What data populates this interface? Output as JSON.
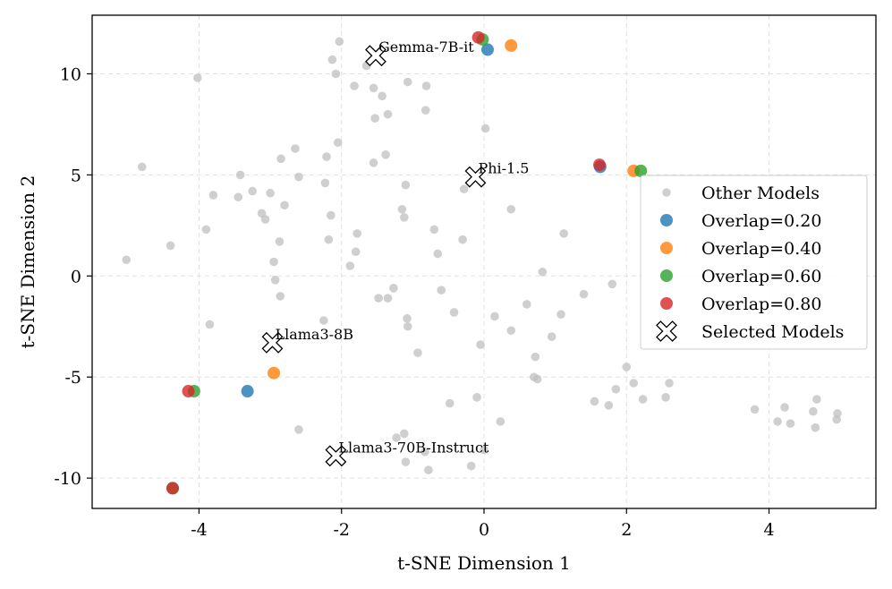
{
  "chart_data": {
    "type": "scatter",
    "xlabel": "t-SNE Dimension 1",
    "ylabel": "t-SNE Dimension 2",
    "xlim": [
      -5.5,
      5.5
    ],
    "ylim": [
      -11.5,
      12.9
    ],
    "xticks": [
      -4,
      -2,
      0,
      2,
      4
    ],
    "yticks": [
      -10,
      -5,
      0,
      5,
      10
    ],
    "xtick_labels": [
      "-4",
      "-2",
      "0",
      "2",
      "4"
    ],
    "ytick_labels": [
      "-10",
      "-5",
      "0",
      "5",
      "10"
    ],
    "grid": true,
    "legend_position": "center-right",
    "series": [
      {
        "name": "Other Models",
        "color": "#bfbfbf",
        "marker": "small-circle",
        "points": [
          [
            -5.02,
            0.8
          ],
          [
            -4.8,
            5.4
          ],
          [
            -4.4,
            1.5
          ],
          [
            -4.02,
            9.8
          ],
          [
            -3.9,
            2.3
          ],
          [
            -3.85,
            -2.4
          ],
          [
            -3.8,
            4.0
          ],
          [
            -3.45,
            3.9
          ],
          [
            -3.42,
            5.0
          ],
          [
            -3.25,
            4.2
          ],
          [
            -3.12,
            3.1
          ],
          [
            -3.07,
            2.8
          ],
          [
            -3.0,
            4.1
          ],
          [
            -2.95,
            0.7
          ],
          [
            -2.93,
            -0.2
          ],
          [
            -2.87,
            1.7
          ],
          [
            -2.86,
            -1.0
          ],
          [
            -2.85,
            5.8
          ],
          [
            -2.8,
            3.5
          ],
          [
            -2.65,
            6.3
          ],
          [
            -2.6,
            4.9
          ],
          [
            -2.6,
            -7.6
          ],
          [
            -2.25,
            -2.2
          ],
          [
            -2.23,
            4.6
          ],
          [
            -2.21,
            5.9
          ],
          [
            -2.18,
            1.8
          ],
          [
            -2.15,
            3.0
          ],
          [
            -2.13,
            10.7
          ],
          [
            -2.08,
            10.0
          ],
          [
            -2.05,
            6.6
          ],
          [
            -2.03,
            11.6
          ],
          [
            -1.88,
            0.5
          ],
          [
            -1.82,
            9.4
          ],
          [
            -1.8,
            1.2
          ],
          [
            -1.78,
            2.1
          ],
          [
            -1.65,
            10.4
          ],
          [
            -1.55,
            9.3
          ],
          [
            -1.55,
            5.6
          ],
          [
            -1.53,
            7.8
          ],
          [
            -1.48,
            -1.1
          ],
          [
            -1.43,
            8.9
          ],
          [
            -1.38,
            6.0
          ],
          [
            -1.35,
            8.0
          ],
          [
            -1.35,
            -1.1
          ],
          [
            -1.27,
            -0.6
          ],
          [
            -1.23,
            -8.0
          ],
          [
            -1.15,
            3.3
          ],
          [
            -1.12,
            2.9
          ],
          [
            -1.12,
            -7.8
          ],
          [
            -1.1,
            4.5
          ],
          [
            -1.1,
            -9.2
          ],
          [
            -1.08,
            -2.1
          ],
          [
            -1.07,
            -2.5
          ],
          [
            -1.07,
            9.6
          ],
          [
            -0.93,
            -3.8
          ],
          [
            -0.83,
            -8.7
          ],
          [
            -0.82,
            8.2
          ],
          [
            -0.81,
            9.4
          ],
          [
            -0.78,
            -9.6
          ],
          [
            -0.7,
            2.3
          ],
          [
            -0.65,
            1.1
          ],
          [
            -0.6,
            -0.7
          ],
          [
            -0.48,
            -6.3
          ],
          [
            -0.42,
            -1.8
          ],
          [
            -0.3,
            1.8
          ],
          [
            -0.28,
            4.3
          ],
          [
            -0.18,
            -9.4
          ],
          [
            -0.1,
            -6.0
          ],
          [
            -0.05,
            -3.4
          ],
          [
            0.0,
            -8.6
          ],
          [
            0.02,
            7.3
          ],
          [
            0.15,
            -2.0
          ],
          [
            0.23,
            -7.2
          ],
          [
            0.38,
            3.3
          ],
          [
            0.38,
            -2.7
          ],
          [
            0.6,
            -1.4
          ],
          [
            0.7,
            -5.0
          ],
          [
            0.72,
            -4.0
          ],
          [
            0.75,
            -5.1
          ],
          [
            0.82,
            0.2
          ],
          [
            0.95,
            -3.0
          ],
          [
            1.08,
            -1.9
          ],
          [
            1.12,
            2.1
          ],
          [
            1.4,
            -0.9
          ],
          [
            1.55,
            -6.2
          ],
          [
            1.75,
            -6.4
          ],
          [
            1.8,
            -0.4
          ],
          [
            1.85,
            -5.6
          ],
          [
            2.0,
            -4.5
          ],
          [
            2.1,
            -5.3
          ],
          [
            2.23,
            -6.1
          ],
          [
            2.55,
            -6.0
          ],
          [
            2.6,
            -5.3
          ],
          [
            3.8,
            -6.6
          ],
          [
            4.12,
            -7.2
          ],
          [
            4.22,
            -6.5
          ],
          [
            4.3,
            -7.3
          ],
          [
            4.62,
            -6.7
          ],
          [
            4.65,
            -7.5
          ],
          [
            4.67,
            -6.1
          ],
          [
            4.95,
            -7.1
          ],
          [
            4.96,
            -6.8
          ]
        ]
      },
      {
        "name": "Overlap=0.20",
        "color": "#1f77b4",
        "marker": "circle",
        "points": [
          [
            0.05,
            11.2
          ],
          [
            1.63,
            5.4
          ],
          [
            -3.32,
            -5.7
          ]
        ]
      },
      {
        "name": "Overlap=0.40",
        "color": "#ff7f0e",
        "marker": "circle",
        "points": [
          [
            0.38,
            11.4
          ],
          [
            2.1,
            5.2
          ],
          [
            -2.95,
            -4.8
          ]
        ]
      },
      {
        "name": "Overlap=0.60",
        "color": "#2ca02c",
        "marker": "circle",
        "points": [
          [
            -0.02,
            11.7
          ],
          [
            2.2,
            5.2
          ],
          [
            -4.07,
            -5.7
          ],
          [
            -4.37,
            -10.5
          ]
        ]
      },
      {
        "name": "Overlap=0.80",
        "color": "#d62728",
        "marker": "circle",
        "points": [
          [
            -0.08,
            11.8
          ],
          [
            1.62,
            5.5
          ],
          [
            -4.15,
            -5.7
          ],
          [
            -4.37,
            -10.5
          ]
        ]
      },
      {
        "name": "Selected Models",
        "color": "#ffffff",
        "marker": "x-filled",
        "points": [
          [
            -1.52,
            10.9
          ],
          [
            -0.12,
            4.9
          ],
          [
            -2.97,
            -3.3
          ],
          [
            -2.08,
            -8.9
          ]
        ]
      }
    ],
    "annotations": [
      {
        "text": "Gemma-7B-it",
        "x": -1.52,
        "y": 10.9
      },
      {
        "text": "Phi-1.5",
        "x": -0.12,
        "y": 4.9
      },
      {
        "text": "Llama3-8B",
        "x": -2.97,
        "y": -3.3
      },
      {
        "text": "Llama3-70B-Instruct",
        "x": -2.08,
        "y": -8.9
      }
    ]
  }
}
